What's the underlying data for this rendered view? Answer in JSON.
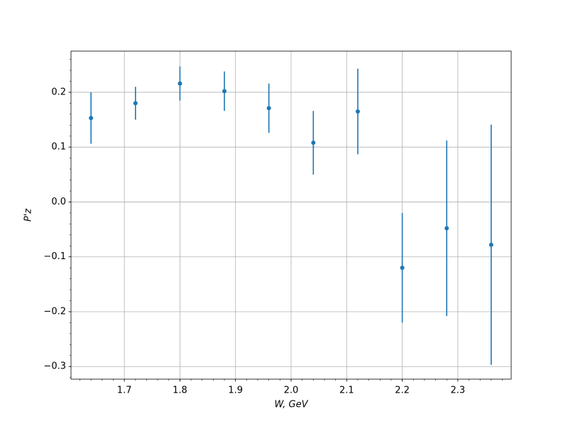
{
  "chart_data": {
    "type": "errorbar",
    "x_label": "W, GeV",
    "y_label": "P'z",
    "x": [
      1.64,
      1.72,
      1.8,
      1.88,
      1.96,
      2.04,
      2.12,
      2.2,
      2.28,
      2.36
    ],
    "values": [
      0.153,
      0.18,
      0.216,
      0.202,
      0.171,
      0.108,
      0.165,
      -0.12,
      -0.048,
      -0.078
    ],
    "errors": [
      0.047,
      0.03,
      0.031,
      0.036,
      0.045,
      0.058,
      0.078,
      0.1,
      0.16,
      0.219
    ],
    "color": "#1f77b4",
    "xlim": [
      1.604,
      2.396
    ],
    "ylim": [
      -0.323,
      0.275
    ],
    "xticks": [
      1.7,
      1.8,
      1.9,
      {
        "value": 2.0,
        "label": "2.0"
      },
      2.1,
      2.2,
      2.3
    ],
    "yticks": [
      {
        "value": -0.3,
        "label": "−0.3"
      },
      {
        "value": -0.2,
        "label": "−0.2"
      },
      {
        "value": -0.1,
        "label": "−0.1"
      },
      {
        "value": 0,
        "label": "0.0"
      },
      0.1,
      0.2
    ],
    "grid": true,
    "minor_ticks": true
  }
}
